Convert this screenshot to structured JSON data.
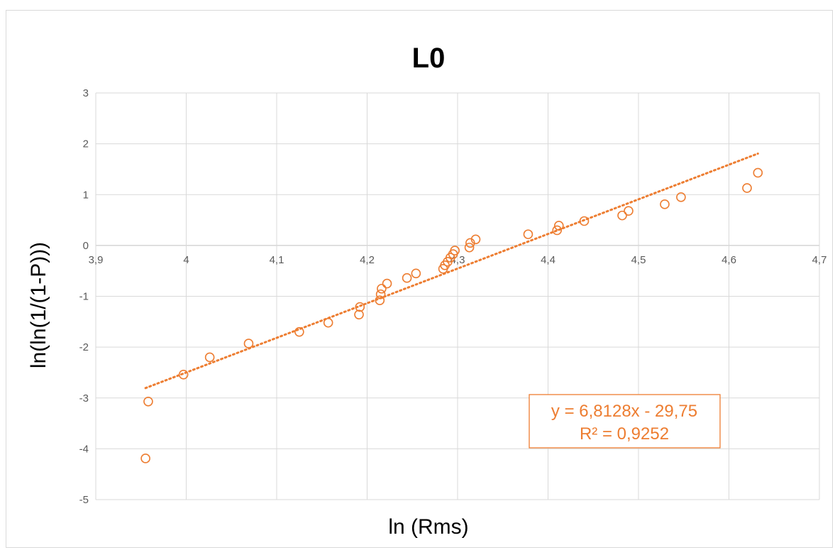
{
  "chart_data": {
    "type": "scatter",
    "title": "L0",
    "xlabel": "ln (Rms)",
    "ylabel": "ln(ln(1/(1-P)))",
    "xlim": [
      3.9,
      4.7
    ],
    "ylim": [
      -5,
      3
    ],
    "x_ticks": [
      "3,9",
      "4",
      "4,1",
      "4,2",
      "4,3",
      "4,4",
      "4,5",
      "4,6",
      "4,7"
    ],
    "y_ticks": [
      "3",
      "2",
      "1",
      "0",
      "-1",
      "-2",
      "-3",
      "-4",
      "-5"
    ],
    "grid": true,
    "legend": "none",
    "series": [
      {
        "color": "#ED7D31",
        "marker": "open-circle",
        "points": [
          [
            3.955,
            -4.19
          ],
          [
            3.958,
            -3.07
          ],
          [
            3.997,
            -2.54
          ],
          [
            4.026,
            -2.2
          ],
          [
            4.069,
            -1.93
          ],
          [
            4.125,
            -1.7
          ],
          [
            4.157,
            -1.52
          ],
          [
            4.191,
            -1.36
          ],
          [
            4.192,
            -1.21
          ],
          [
            4.214,
            -1.08
          ],
          [
            4.215,
            -0.96
          ],
          [
            4.216,
            -0.85
          ],
          [
            4.222,
            -0.75
          ],
          [
            4.244,
            -0.64
          ],
          [
            4.254,
            -0.55
          ],
          [
            4.284,
            -0.46
          ],
          [
            4.286,
            -0.39
          ],
          [
            4.289,
            -0.32
          ],
          [
            4.292,
            -0.24
          ],
          [
            4.295,
            -0.17
          ],
          [
            4.297,
            -0.1
          ],
          [
            4.313,
            -0.04
          ],
          [
            4.314,
            0.05
          ],
          [
            4.32,
            0.12
          ],
          [
            4.378,
            0.22
          ],
          [
            4.41,
            0.3
          ],
          [
            4.412,
            0.39
          ],
          [
            4.44,
            0.48
          ],
          [
            4.482,
            0.59
          ],
          [
            4.489,
            0.68
          ],
          [
            4.529,
            0.81
          ],
          [
            4.547,
            0.95
          ],
          [
            4.62,
            1.13
          ],
          [
            4.632,
            1.43
          ]
        ]
      }
    ],
    "trendline": {
      "type": "linear",
      "style": "dotted",
      "color": "#ED7D31",
      "slope": 6.8128,
      "intercept": -29.75,
      "x_range": [
        3.955,
        4.632
      ],
      "equation": "y = 6,8128x - 29,75",
      "r_squared": "R² = 0,9252"
    }
  }
}
